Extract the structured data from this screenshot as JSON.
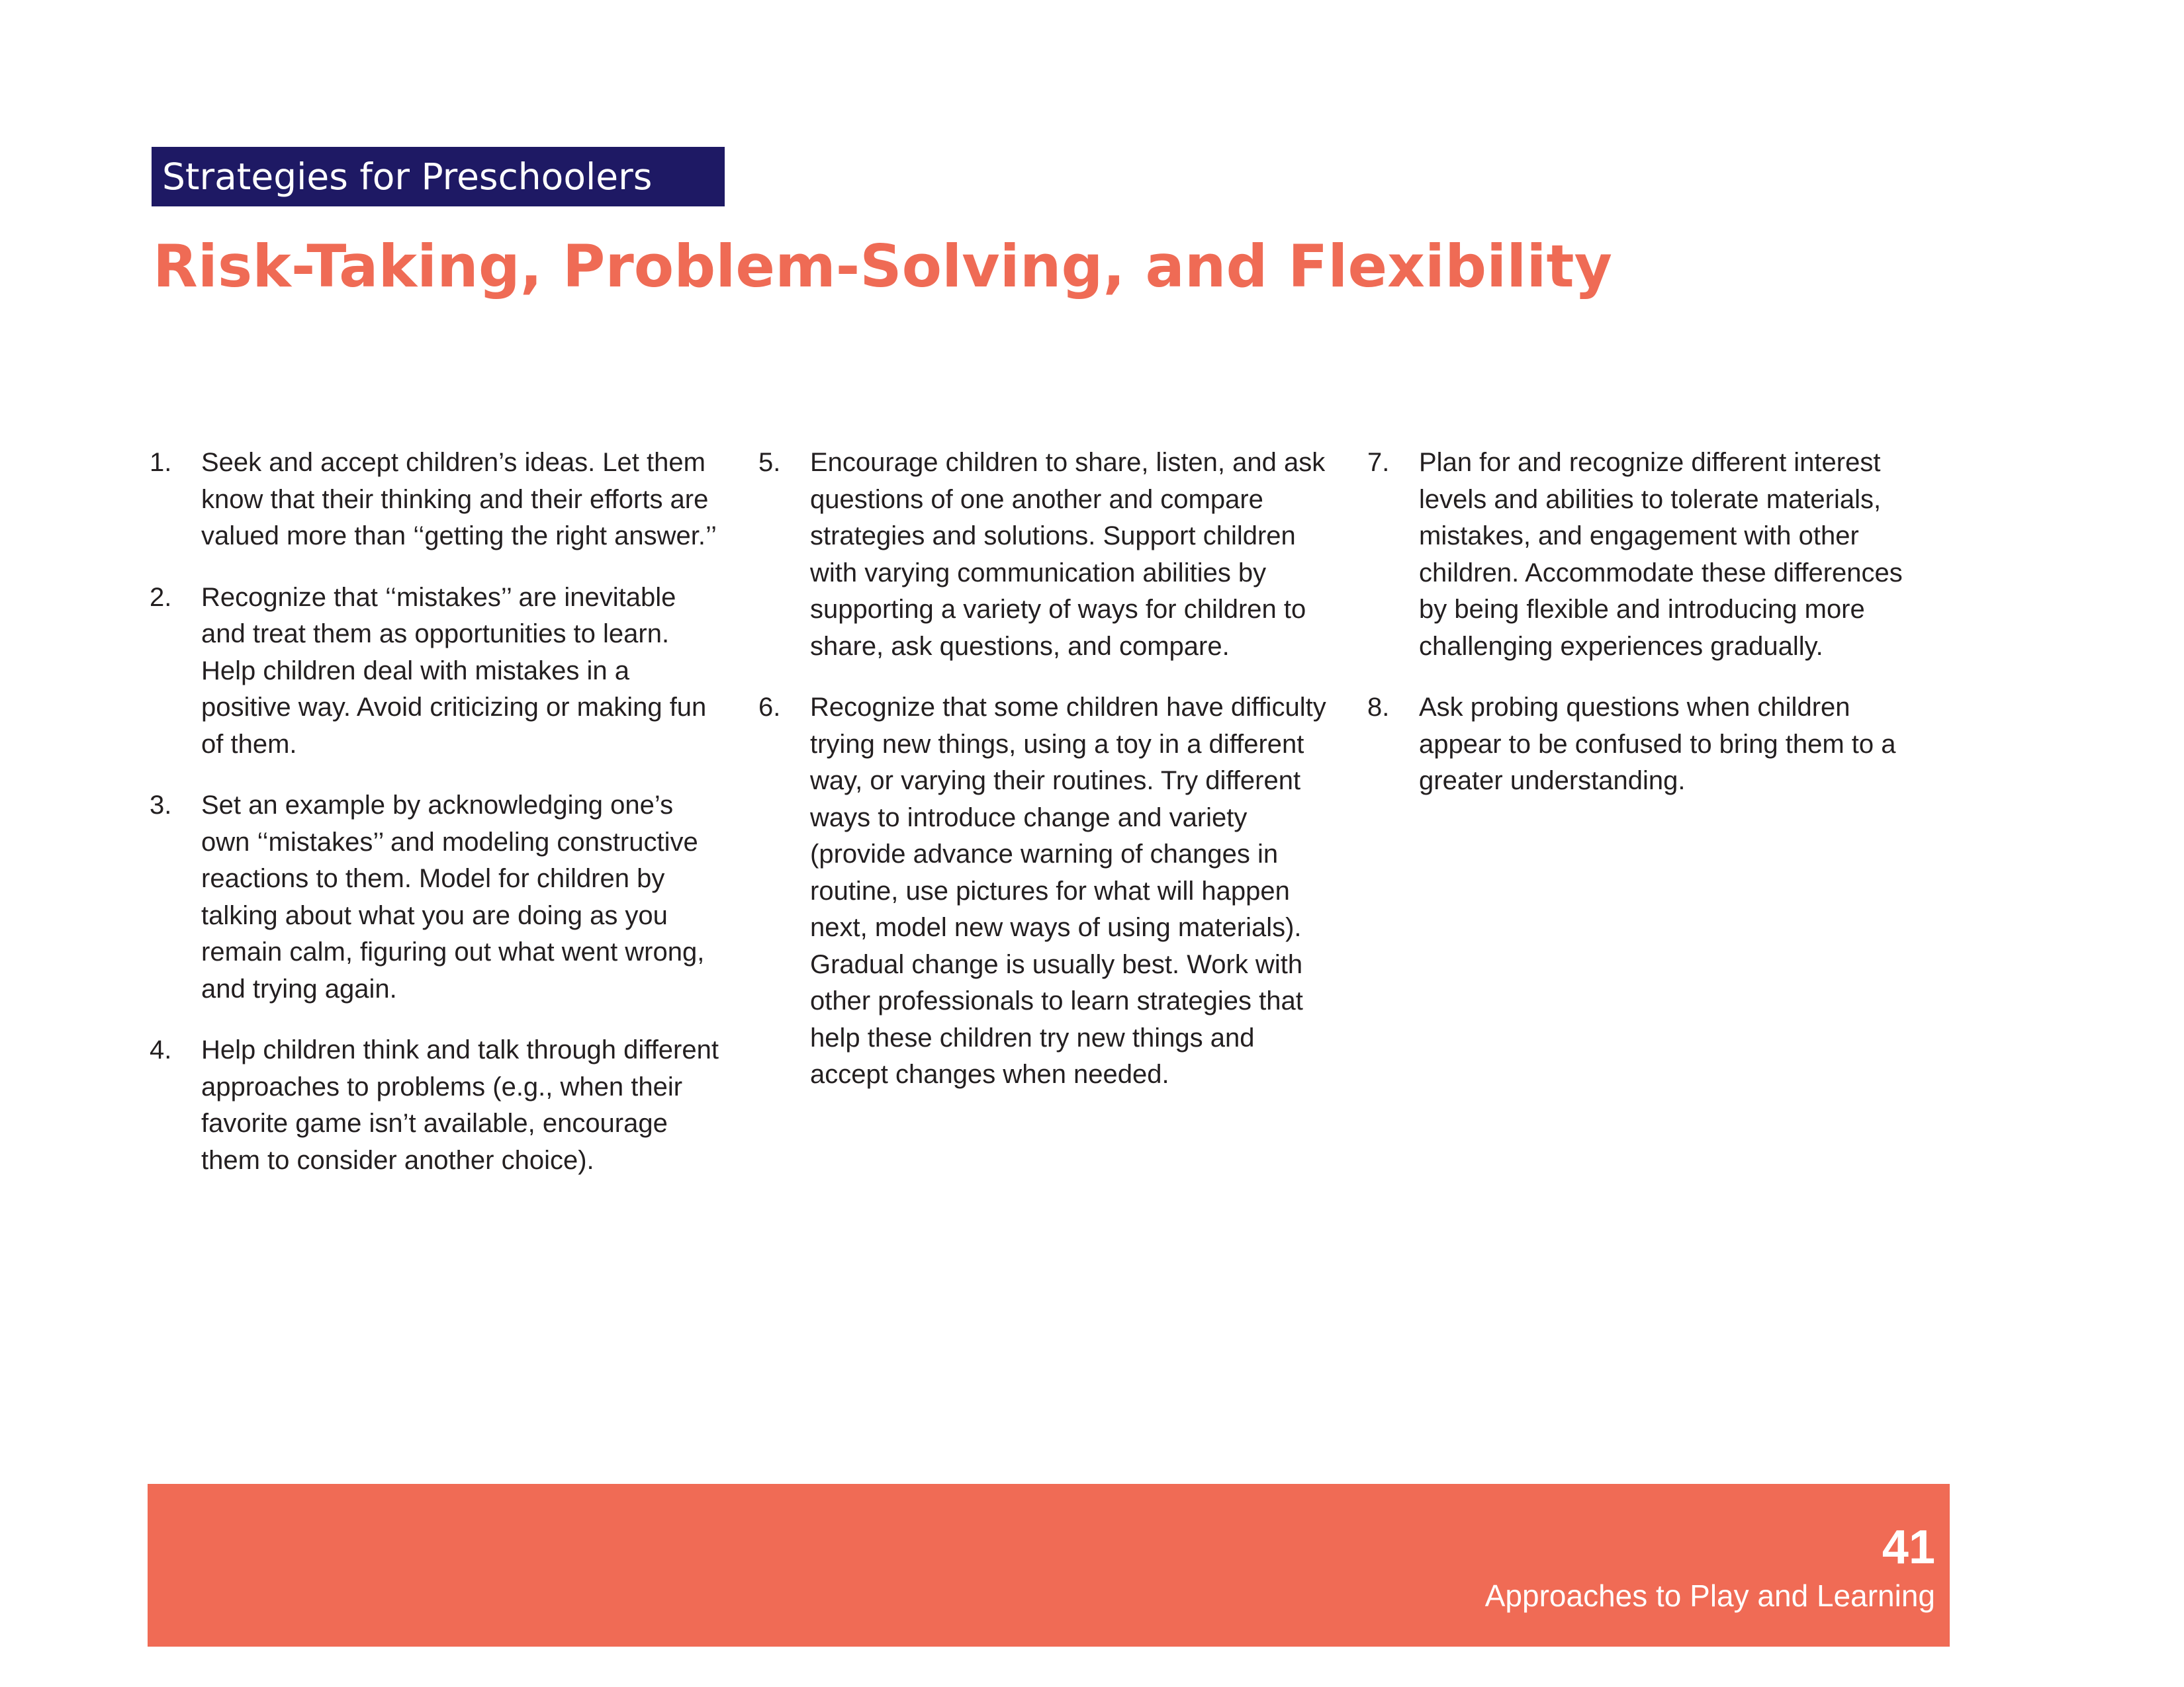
{
  "section_label": "Strategies for Preschoolers",
  "title": "Risk-Taking, Problem-Solving, and Flexibility",
  "columns": [
    [
      {
        "num": "1.",
        "text": "Seek and accept children’s ideas. Let them know that their thinking and their efforts are valued more than ‘‘getting the right answer.’’"
      },
      {
        "num": "2.",
        "text": "Recognize that ‘‘mistakes’’ are inevitable and treat them as opportunities to learn. Help children deal with mistakes in a positive way. Avoid criticizing or making fun of them."
      },
      {
        "num": "3.",
        "text": "Set an example by acknowledging one’s own ‘‘mistakes’’ and modeling constructive reactions to them. Model for children by talking about what you are doing as you remain calm, figuring out what went wrong, and trying again."
      },
      {
        "num": "4.",
        "text": "Help children think and talk through different approaches to problems (e.g., when their favorite game isn’t available, encourage them to consider another choice)."
      }
    ],
    [
      {
        "num": "5.",
        "text": "Encourage children to share, listen, and ask questions of one another and compare strategies and solutions. Support children with varying communication abilities by supporting a variety of ways for children to share, ask questions, and compare."
      },
      {
        "num": "6.",
        "text": "Recognize that some children have difficulty trying new things, using a toy in a different way, or varying their routines. Try different ways to introduce change and variety (provide advance warning of changes in routine, use pictures for what will happen next, model new ways of using materials). Gradual change is usually best. Work with other professionals to learn strategies that help these children try new things and accept changes when needed."
      }
    ],
    [
      {
        "num": "7.",
        "text": "Plan for and recognize different interest levels and abilities to tolerate materials, mistakes, and engagement with other children. Accommodate these differences by being flexible and introducing more challenging experiences gradually."
      },
      {
        "num": "8.",
        "text": "Ask probing questions when children appear to be confused to bring them to a greater understanding."
      }
    ]
  ],
  "footer": {
    "page_number": "41",
    "caption": "Approaches to Play and Learning"
  },
  "colors": {
    "label_bg": "#1e1964",
    "accent": "#ef6b55",
    "body_text": "#231f20"
  }
}
